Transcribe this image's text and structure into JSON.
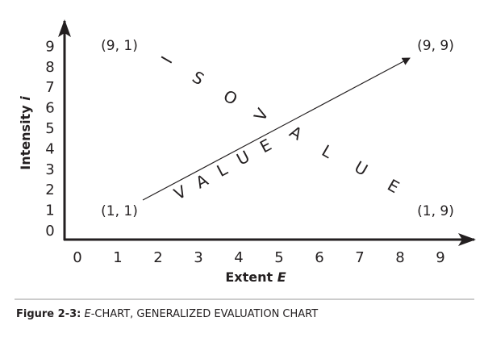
{
  "y_axis": {
    "label": "Intensity",
    "variable": "i",
    "ticks": [
      "0",
      "1",
      "2",
      "3",
      "4",
      "5",
      "6",
      "7",
      "8",
      "9"
    ]
  },
  "x_axis": {
    "label": "Extent",
    "variable": "E",
    "ticks": [
      "0",
      "1",
      "2",
      "3",
      "4",
      "5",
      "6",
      "7",
      "8",
      "9"
    ]
  },
  "corners": {
    "top_left": "(9, 1)",
    "top_right": "(9, 9)",
    "bottom_left": "(1, 1)",
    "bottom_right": "(1, 9)"
  },
  "isovalue_letters": [
    "I",
    "S",
    "O",
    "V",
    "A",
    "L",
    "U",
    "E"
  ],
  "value_letters": [
    "V",
    "A",
    "L",
    "U",
    "E"
  ],
  "caption": {
    "label": "Figure 2-3:",
    "italic": "E",
    "text": "-CHART, GENERALIZED EVALUATION CHART"
  }
}
